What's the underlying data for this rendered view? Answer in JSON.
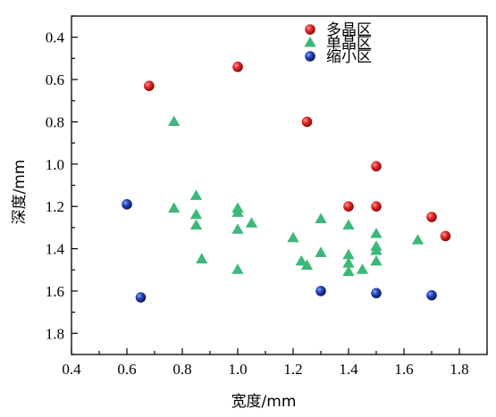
{
  "chart_data": {
    "type": "scatter",
    "xlabel": "宽度/mm",
    "ylabel": "深度/mm",
    "xlim": [
      0.4,
      1.9
    ],
    "ylim": [
      1.9,
      0.3
    ],
    "y_inverted": true,
    "xticks": [
      "0.4",
      "0.6",
      "0.8",
      "1.0",
      "1.2",
      "1.4",
      "1.6",
      "1.8"
    ],
    "yticks": [
      "0.4",
      "0.6",
      "0.8",
      "1.0",
      "1.2",
      "1.4",
      "1.6",
      "1.8"
    ],
    "grid": false,
    "legend_position": "top-right",
    "series": [
      {
        "name": "多晶区",
        "marker": "circle",
        "color": "#e02020",
        "points": [
          [
            0.68,
            0.63
          ],
          [
            1.0,
            0.54
          ],
          [
            1.25,
            0.8
          ],
          [
            1.5,
            1.01
          ],
          [
            1.4,
            1.2
          ],
          [
            1.5,
            1.2
          ],
          [
            1.7,
            1.25
          ],
          [
            1.75,
            1.34
          ]
        ]
      },
      {
        "name": "单晶区",
        "marker": "triangle",
        "color": "#3cb878",
        "points": [
          [
            0.77,
            0.8
          ],
          [
            0.77,
            1.21
          ],
          [
            0.85,
            1.15
          ],
          [
            0.85,
            1.24
          ],
          [
            0.85,
            1.29
          ],
          [
            0.87,
            1.45
          ],
          [
            1.0,
            1.21
          ],
          [
            1.0,
            1.23
          ],
          [
            1.0,
            1.31
          ],
          [
            1.05,
            1.28
          ],
          [
            1.0,
            1.5
          ],
          [
            1.2,
            1.35
          ],
          [
            1.23,
            1.46
          ],
          [
            1.25,
            1.48
          ],
          [
            1.3,
            1.26
          ],
          [
            1.3,
            1.42
          ],
          [
            1.4,
            1.29
          ],
          [
            1.4,
            1.43
          ],
          [
            1.4,
            1.47
          ],
          [
            1.4,
            1.51
          ],
          [
            1.45,
            1.5
          ],
          [
            1.5,
            1.33
          ],
          [
            1.5,
            1.39
          ],
          [
            1.5,
            1.41
          ],
          [
            1.5,
            1.46
          ],
          [
            1.65,
            1.36
          ]
        ]
      },
      {
        "name": "缩小区",
        "marker": "circle",
        "color": "#1f3fa8",
        "points": [
          [
            0.6,
            1.19
          ],
          [
            0.65,
            1.63
          ],
          [
            1.3,
            1.6
          ],
          [
            1.5,
            1.61
          ],
          [
            1.7,
            1.62
          ]
        ]
      }
    ]
  }
}
